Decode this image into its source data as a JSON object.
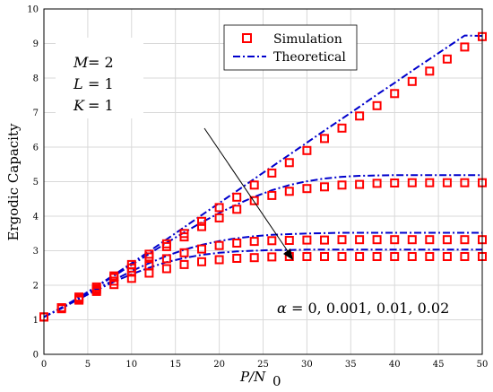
{
  "chart_data": {
    "type": "line",
    "xlabel": "P/N0",
    "ylabel": "Ergodic Capacity",
    "xlim": [
      0,
      50
    ],
    "ylim": [
      0,
      10
    ],
    "xticks": [
      0,
      5,
      10,
      15,
      20,
      25,
      30,
      35,
      40,
      45,
      50
    ],
    "yticks": [
      0,
      1,
      2,
      3,
      4,
      5,
      6,
      7,
      8,
      9,
      10
    ],
    "grid": true,
    "legend_position": "top-right",
    "legend": [
      {
        "label": "Simulation",
        "marker": "square",
        "color": "#ff0000"
      },
      {
        "label": "Theoretical",
        "style": "dash-dot",
        "color": "#0000cc"
      }
    ],
    "params": [
      "M = 2",
      "L = 1",
      "K = 1"
    ],
    "annotation": "α = 0, 0.001, 0.01, 0.02",
    "series": [
      {
        "theoretical": {
          "x": [
            0,
            2,
            4,
            6,
            8,
            10,
            12,
            14,
            16,
            18,
            20,
            22,
            24,
            26,
            28,
            30,
            32,
            34,
            36,
            38,
            40,
            42,
            44,
            46,
            48,
            50
          ],
          "y": [
            1.08,
            1.35,
            1.65,
            1.97,
            2.3,
            2.64,
            2.98,
            3.33,
            3.68,
            4.03,
            4.38,
            4.73,
            5.08,
            5.43,
            5.78,
            6.13,
            6.48,
            6.82,
            7.17,
            7.52,
            7.86,
            8.21,
            8.55,
            8.89,
            9.23,
            9.22
          ]
        },
        "simulation": {
          "x": [
            0,
            2,
            4,
            6,
            8,
            10,
            12,
            14,
            16,
            18,
            20,
            22,
            24,
            26,
            28,
            30,
            32,
            34,
            36,
            38,
            40,
            42,
            44,
            46,
            48,
            50
          ],
          "y": [
            1.08,
            1.35,
            1.66,
            1.95,
            2.27,
            2.6,
            2.9,
            3.2,
            3.5,
            3.85,
            4.25,
            4.55,
            4.9,
            5.25,
            5.55,
            5.9,
            6.25,
            6.55,
            6.9,
            7.2,
            7.55,
            7.9,
            8.2,
            8.55,
            8.9,
            9.2
          ]
        }
      },
      {
        "theoretical": {
          "x": [
            0,
            2,
            4,
            6,
            8,
            10,
            12,
            14,
            16,
            18,
            20,
            22,
            24,
            26,
            28,
            30,
            32,
            34,
            36,
            38,
            40,
            42,
            44,
            46,
            48,
            50
          ],
          "y": [
            1.08,
            1.35,
            1.64,
            1.95,
            2.27,
            2.59,
            2.91,
            3.23,
            3.53,
            3.82,
            4.09,
            4.34,
            4.56,
            4.75,
            4.9,
            5.01,
            5.09,
            5.14,
            5.17,
            5.18,
            5.19,
            5.19,
            5.19,
            5.19,
            5.19,
            5.19
          ]
        },
        "simulation": {
          "x": [
            0,
            2,
            4,
            6,
            8,
            10,
            12,
            14,
            16,
            18,
            20,
            22,
            24,
            26,
            28,
            30,
            32,
            34,
            36,
            38,
            40,
            42,
            44,
            46,
            48,
            50
          ],
          "y": [
            1.08,
            1.35,
            1.62,
            1.9,
            2.22,
            2.5,
            2.82,
            3.12,
            3.4,
            3.7,
            3.95,
            4.2,
            4.45,
            4.6,
            4.72,
            4.8,
            4.85,
            4.9,
            4.92,
            4.95,
            4.96,
            4.97,
            4.97,
            4.97,
            4.97,
            4.97
          ]
        }
      },
      {
        "theoretical": {
          "x": [
            0,
            2,
            4,
            6,
            8,
            10,
            12,
            14,
            16,
            18,
            20,
            22,
            24,
            26,
            28,
            30,
            32,
            34,
            36,
            38,
            40,
            42,
            44,
            46,
            48,
            50
          ],
          "y": [
            1.08,
            1.34,
            1.62,
            1.89,
            2.15,
            2.41,
            2.64,
            2.85,
            3.03,
            3.17,
            3.28,
            3.36,
            3.42,
            3.46,
            3.48,
            3.5,
            3.51,
            3.52,
            3.52,
            3.52,
            3.52,
            3.52,
            3.52,
            3.52,
            3.52,
            3.52
          ]
        },
        "simulation": {
          "x": [
            0,
            2,
            4,
            6,
            8,
            10,
            12,
            14,
            16,
            18,
            20,
            22,
            24,
            26,
            28,
            30,
            32,
            34,
            36,
            38,
            40,
            42,
            44,
            46,
            48,
            50
          ],
          "y": [
            1.08,
            1.34,
            1.6,
            1.86,
            2.12,
            2.38,
            2.57,
            2.77,
            2.94,
            3.05,
            3.15,
            3.22,
            3.27,
            3.29,
            3.3,
            3.31,
            3.31,
            3.32,
            3.32,
            3.32,
            3.32,
            3.32,
            3.32,
            3.32,
            3.32,
            3.32
          ]
        }
      },
      {
        "theoretical": {
          "x": [
            0,
            2,
            4,
            6,
            8,
            10,
            12,
            14,
            16,
            18,
            20,
            22,
            24,
            26,
            28,
            30,
            32,
            34,
            36,
            38,
            40,
            42,
            44,
            46,
            48,
            50
          ],
          "y": [
            1.08,
            1.33,
            1.6,
            1.86,
            2.1,
            2.32,
            2.51,
            2.67,
            2.79,
            2.88,
            2.94,
            2.98,
            3.0,
            3.02,
            3.02,
            3.03,
            3.03,
            3.03,
            3.03,
            3.03,
            3.03,
            3.03,
            3.03,
            3.03,
            3.03,
            3.03
          ]
        },
        "simulation": {
          "x": [
            0,
            2,
            4,
            6,
            8,
            10,
            12,
            14,
            16,
            18,
            20,
            22,
            24,
            26,
            28,
            30,
            32,
            34,
            36,
            38,
            40,
            42,
            44,
            46,
            48,
            50
          ],
          "y": [
            1.08,
            1.32,
            1.57,
            1.82,
            2.02,
            2.2,
            2.35,
            2.48,
            2.6,
            2.68,
            2.74,
            2.78,
            2.8,
            2.82,
            2.83,
            2.83,
            2.83,
            2.83,
            2.83,
            2.83,
            2.83,
            2.83,
            2.83,
            2.83,
            2.83,
            2.83
          ]
        }
      }
    ]
  },
  "labels": {
    "xlabel_main": "P/N",
    "xlabel_sub": "0",
    "param_vars": [
      "M",
      "L",
      "K"
    ],
    "param_vals": [
      "= 2",
      "= 1",
      "= 1"
    ],
    "annot_alpha": "α",
    "annot_rest": "= 0, 0.001, 0.01, 0.02"
  }
}
